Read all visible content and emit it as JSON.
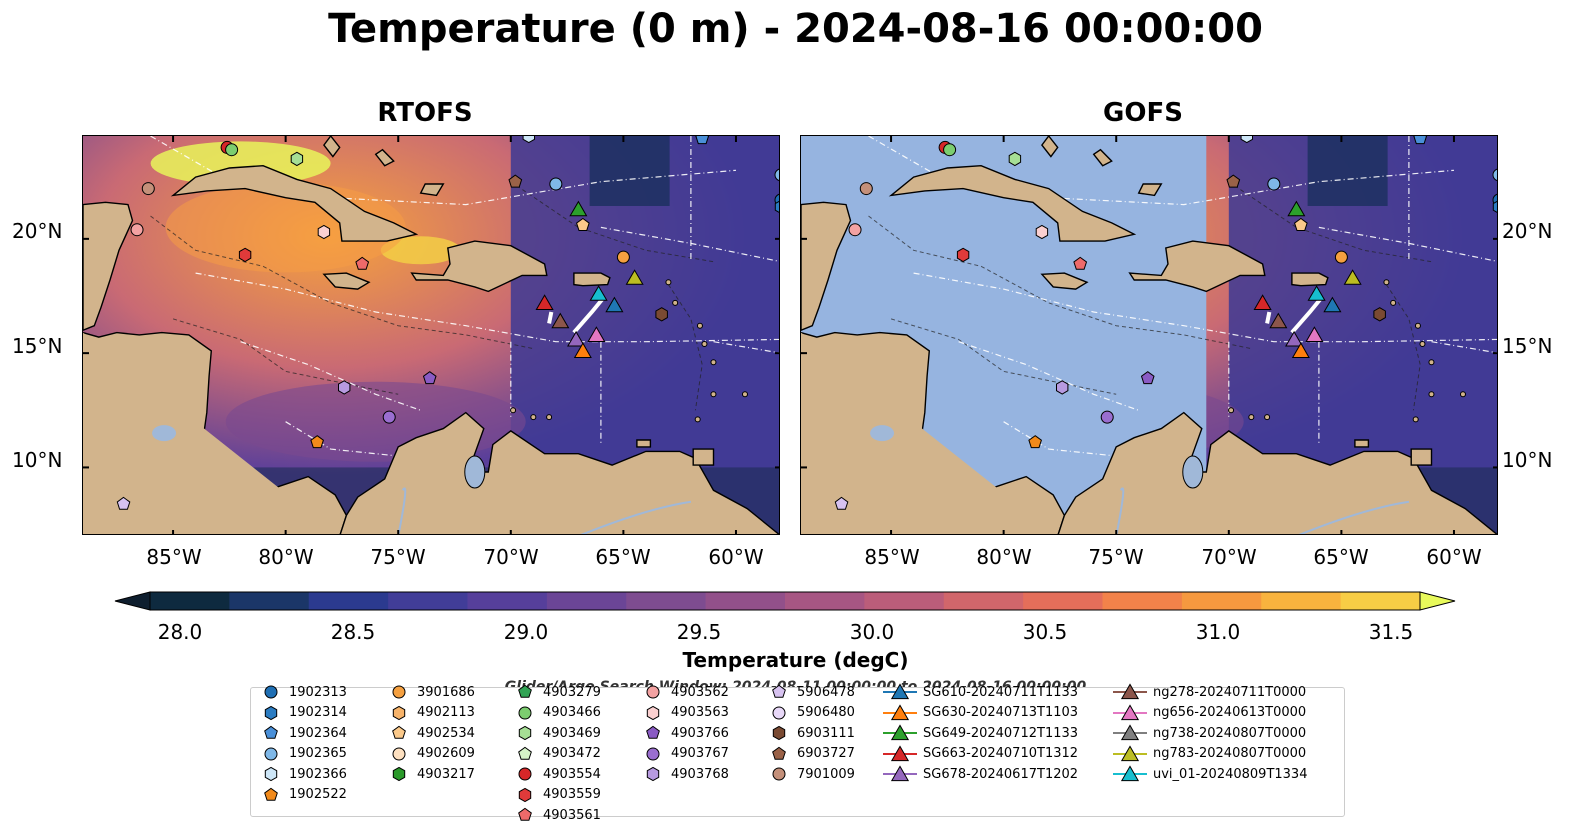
{
  "title": "Temperature (0 m) - 2024-08-16 00:00:00",
  "panels": {
    "left": "RTOFS",
    "right": "GOFS"
  },
  "lat_labels": [
    "20°N",
    "15°N",
    "10°N"
  ],
  "lon_labels": [
    "85°W",
    "80°W",
    "75°W",
    "70°W",
    "65°W",
    "60°W"
  ],
  "map_extent": {
    "lon_min": -89,
    "lon_max": -58,
    "lat_min": 7,
    "lat_max": 24.5
  },
  "colorbar": {
    "label": "Temperature (degC)",
    "ticks": [
      "28.0",
      "28.5",
      "29.0",
      "29.5",
      "30.0",
      "30.5",
      "31.0",
      "31.5"
    ],
    "min": 28.0,
    "max": 31.5,
    "extend": "both",
    "colors": [
      "#0e2a3f",
      "#1b3668",
      "#2b3a8f",
      "#413d98",
      "#563f9b",
      "#6b4596",
      "#7e4c90",
      "#92508a",
      "#a75683",
      "#bb5d7a",
      "#d1666b",
      "#e46e5a",
      "#f2824a",
      "#f6993f",
      "#f8b33e",
      "#f7cd45"
    ],
    "under_color": "#0e1e2e",
    "over_color": "#e8fa5b"
  },
  "search_window": "Glider/Argo Search Window: 2024-08-11 00:00:00 to 2024-08-16 00:00:00",
  "colors": {
    "land": "#d2b48c",
    "gofs_mask": "#96b4e0",
    "river": "#a0b8d8"
  },
  "legend": [
    {
      "label": "1902313",
      "marker": "circle",
      "color": "#1f6fb4"
    },
    {
      "label": "1902314",
      "marker": "hexagon",
      "color": "#2b7cc2"
    },
    {
      "label": "1902364",
      "marker": "pentagon",
      "color": "#4a90d9"
    },
    {
      "label": "1902365",
      "marker": "circle",
      "color": "#7fb8e8"
    },
    {
      "label": "1902366",
      "marker": "hexagon",
      "color": "#cde6f7"
    },
    {
      "label": "1902522",
      "marker": "pentagon",
      "color": "#f28a1a"
    },
    {
      "label": "3901686",
      "marker": "circle",
      "color": "#f5a040"
    },
    {
      "label": "4902113",
      "marker": "hexagon",
      "color": "#f7b36a"
    },
    {
      "label": "4902534",
      "marker": "pentagon",
      "color": "#fbc98a"
    },
    {
      "label": "4902609",
      "marker": "circle",
      "color": "#fde0c0"
    },
    {
      "label": "4903217",
      "marker": "hexagon",
      "color": "#2a9a2a"
    },
    {
      "label": "4903279",
      "marker": "pentagon",
      "color": "#31a354"
    },
    {
      "label": "4903466",
      "marker": "circle",
      "color": "#7ccd6f"
    },
    {
      "label": "4903469",
      "marker": "hexagon",
      "color": "#a6df95"
    },
    {
      "label": "4903472",
      "marker": "pentagon",
      "color": "#d6f4c8"
    },
    {
      "label": "4903554",
      "marker": "circle",
      "color": "#d62728"
    },
    {
      "label": "4903559",
      "marker": "hexagon",
      "color": "#e03a3a"
    },
    {
      "label": "4903561",
      "marker": "pentagon",
      "color": "#ee6a6a"
    },
    {
      "label": "4903562",
      "marker": "circle",
      "color": "#f3a2a2"
    },
    {
      "label": "4903563",
      "marker": "hexagon",
      "color": "#fbd0d0"
    },
    {
      "label": "4903766",
      "marker": "pentagon",
      "color": "#8a5bc4"
    },
    {
      "label": "4903767",
      "marker": "circle",
      "color": "#9a6ed0"
    },
    {
      "label": "4903768",
      "marker": "hexagon",
      "color": "#b79ae0"
    },
    {
      "label": "5906478",
      "marker": "pentagon",
      "color": "#d7c2f0"
    },
    {
      "label": "5906480",
      "marker": "circle",
      "color": "#e8d8f8"
    },
    {
      "label": "6903111",
      "marker": "hexagon",
      "color": "#7a4a32"
    },
    {
      "label": "6903727",
      "marker": "pentagon",
      "color": "#9a6248"
    },
    {
      "label": "7901009",
      "marker": "circle",
      "color": "#c4907a"
    },
    {
      "label": "SG610-20240711T1133",
      "marker": "triangle-line",
      "color": "#1f77b4"
    },
    {
      "label": "SG630-20240713T1103",
      "marker": "triangle-line",
      "color": "#ff7f0e"
    },
    {
      "label": "SG649-20240712T1133",
      "marker": "triangle-line",
      "color": "#2ca02c"
    },
    {
      "label": "SG663-20240710T1312",
      "marker": "triangle-line",
      "color": "#d62728"
    },
    {
      "label": "SG678-20240617T1202",
      "marker": "triangle-line",
      "color": "#9467bd"
    },
    {
      "label": "ng278-20240711T0000",
      "marker": "triangle-line",
      "color": "#8c564b"
    },
    {
      "label": "ng656-20240613T0000",
      "marker": "triangle-line",
      "color": "#e377c2"
    },
    {
      "label": "ng738-20240807T0000",
      "marker": "triangle-line",
      "color": "#7f7f7f"
    },
    {
      "label": "ng783-20240807T0000",
      "marker": "triangle-line",
      "color": "#bcbd22"
    },
    {
      "label": "uvi_01-20240809T1334",
      "marker": "triangle-line",
      "color": "#17becf"
    }
  ],
  "platforms": [
    {
      "id": "4903554",
      "lon": -82.6,
      "lat": 24.0,
      "marker": "circle",
      "color": "#d62728"
    },
    {
      "id": "4903466",
      "lon": -82.4,
      "lat": 23.9,
      "marker": "circle",
      "color": "#7ccd6f"
    },
    {
      "id": "4903469",
      "lon": -79.5,
      "lat": 23.5,
      "marker": "hexagon",
      "color": "#a6df95"
    },
    {
      "id": "7901009",
      "lon": -86.1,
      "lat": 22.2,
      "marker": "circle",
      "color": "#c4907a"
    },
    {
      "id": "4903562",
      "lon": -86.6,
      "lat": 20.4,
      "marker": "circle",
      "color": "#f3a2a2"
    },
    {
      "id": "4903563",
      "lon": -78.3,
      "lat": 20.3,
      "marker": "hexagon",
      "color": "#fbd0d0"
    },
    {
      "id": "4903559",
      "lon": -81.8,
      "lat": 19.3,
      "marker": "hexagon",
      "color": "#e03a3a"
    },
    {
      "id": "4903561",
      "lon": -76.6,
      "lat": 18.9,
      "marker": "pentagon",
      "color": "#ee6a6a"
    },
    {
      "id": "6903727",
      "lon": -69.8,
      "lat": 22.5,
      "marker": "pentagon",
      "color": "#9a6248"
    },
    {
      "id": "1902365",
      "lon": -68.0,
      "lat": 22.4,
      "marker": "circle",
      "color": "#7fb8e8"
    },
    {
      "id": "1902366",
      "lon": -69.2,
      "lat": 24.5,
      "marker": "hexagon",
      "color": "#cde6f7"
    },
    {
      "id": "1902364",
      "lon": -61.5,
      "lat": 24.4,
      "marker": "pentagon",
      "color": "#4a90d9"
    },
    {
      "id": "1902313",
      "lon": -58.0,
      "lat": 21.7,
      "marker": "circle",
      "color": "#1f6fb4"
    },
    {
      "id": "1902314",
      "lon": -58.0,
      "lat": 21.4,
      "marker": "hexagon",
      "color": "#2b7cc2"
    },
    {
      "id": "1902365b",
      "lon": -58.0,
      "lat": 22.8,
      "marker": "circle",
      "color": "#7fb8e8"
    },
    {
      "id": "4902534",
      "lon": -66.8,
      "lat": 20.6,
      "marker": "pentagon",
      "color": "#fbc98a"
    },
    {
      "id": "3901686",
      "lon": -65.0,
      "lat": 19.2,
      "marker": "circle",
      "color": "#f5a040"
    },
    {
      "id": "6903111",
      "lon": -63.3,
      "lat": 16.7,
      "marker": "hexagon",
      "color": "#7a4a32"
    },
    {
      "id": "4903766",
      "lon": -73.6,
      "lat": 13.9,
      "marker": "pentagon",
      "color": "#8a5bc4"
    },
    {
      "id": "4903768",
      "lon": -77.4,
      "lat": 13.5,
      "marker": "hexagon",
      "color": "#b79ae0"
    },
    {
      "id": "4903767",
      "lon": -75.4,
      "lat": 12.2,
      "marker": "circle",
      "color": "#9a6ed0"
    },
    {
      "id": "1902522",
      "lon": -78.6,
      "lat": 11.1,
      "marker": "pentagon",
      "color": "#f28a1a"
    },
    {
      "id": "5906478",
      "lon": -87.2,
      "lat": 8.4,
      "marker": "pentagon",
      "color": "#d7c2f0"
    }
  ],
  "gliders": [
    {
      "id": "SG649",
      "lon": -67.0,
      "lat": 21.3,
      "color": "#2ca02c"
    },
    {
      "id": "ng783",
      "lon": -64.5,
      "lat": 18.3,
      "color": "#bcbd22"
    },
    {
      "id": "uvi_01",
      "lon": -66.1,
      "lat": 17.6,
      "color": "#17becf"
    },
    {
      "id": "SG610",
      "lon": -65.4,
      "lat": 17.1,
      "color": "#1f77b4"
    },
    {
      "id": "SG663",
      "lon": -68.5,
      "lat": 17.2,
      "color": "#d62728"
    },
    {
      "id": "ng278",
      "lon": -67.8,
      "lat": 16.4,
      "color": "#8c564b"
    },
    {
      "id": "SG678",
      "lon": -67.1,
      "lat": 15.6,
      "color": "#9467bd"
    },
    {
      "id": "ng656",
      "lon": -66.2,
      "lat": 15.8,
      "color": "#e377c2"
    },
    {
      "id": "SG630",
      "lon": -66.8,
      "lat": 15.1,
      "color": "#ff7f0e"
    }
  ]
}
